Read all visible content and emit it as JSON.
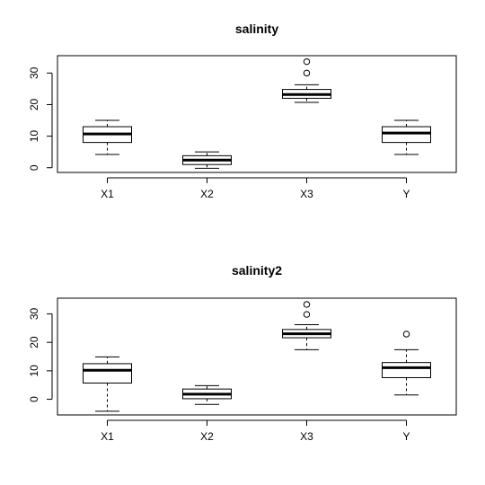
{
  "chart_data": [
    {
      "type": "boxplot",
      "title": "salinity",
      "xlabel": "",
      "ylabel": "",
      "ylim": [
        -1.5,
        35.5
      ],
      "yticks": [
        0,
        10,
        20,
        30
      ],
      "categories": [
        "X1",
        "X2",
        "X3",
        "Y"
      ],
      "boxes": [
        {
          "name": "X1",
          "lower_whisker": 4.2,
          "q1": 8.0,
          "median": 10.7,
          "q3": 13.0,
          "upper_whisker": 15.0,
          "outliers": []
        },
        {
          "name": "X2",
          "lower_whisker": -0.2,
          "q1": 1.0,
          "median": 2.4,
          "q3": 3.8,
          "upper_whisker": 5.0,
          "outliers": []
        },
        {
          "name": "X3",
          "lower_whisker": 20.7,
          "q1": 22.0,
          "median": 23.2,
          "q3": 24.8,
          "upper_whisker": 26.3,
          "outliers": [
            30.0,
            33.6
          ]
        },
        {
          "name": "Y",
          "lower_whisker": 4.2,
          "q1": 8.0,
          "median": 11.0,
          "q3": 13.0,
          "upper_whisker": 15.0,
          "outliers": []
        }
      ]
    },
    {
      "type": "boxplot",
      "title": "salinity2",
      "xlabel": "",
      "ylabel": "",
      "ylim": [
        -5.5,
        35.5
      ],
      "yticks": [
        0,
        10,
        20,
        30
      ],
      "categories": [
        "X1",
        "X2",
        "X3",
        "Y"
      ],
      "boxes": [
        {
          "name": "X1",
          "lower_whisker": -4.2,
          "q1": 5.7,
          "median": 10.2,
          "q3": 12.5,
          "upper_whisker": 14.9,
          "outliers": []
        },
        {
          "name": "X2",
          "lower_whisker": -1.8,
          "q1": 0.2,
          "median": 1.8,
          "q3": 3.6,
          "upper_whisker": 4.8,
          "outliers": []
        },
        {
          "name": "X3",
          "lower_whisker": 17.4,
          "q1": 21.6,
          "median": 23.0,
          "q3": 24.5,
          "upper_whisker": 26.2,
          "outliers": [
            29.8,
            33.3
          ]
        },
        {
          "name": "Y",
          "lower_whisker": 1.5,
          "q1": 7.6,
          "median": 11.1,
          "q3": 12.9,
          "upper_whisker": 17.4,
          "outliers": [
            22.9
          ]
        }
      ]
    }
  ]
}
